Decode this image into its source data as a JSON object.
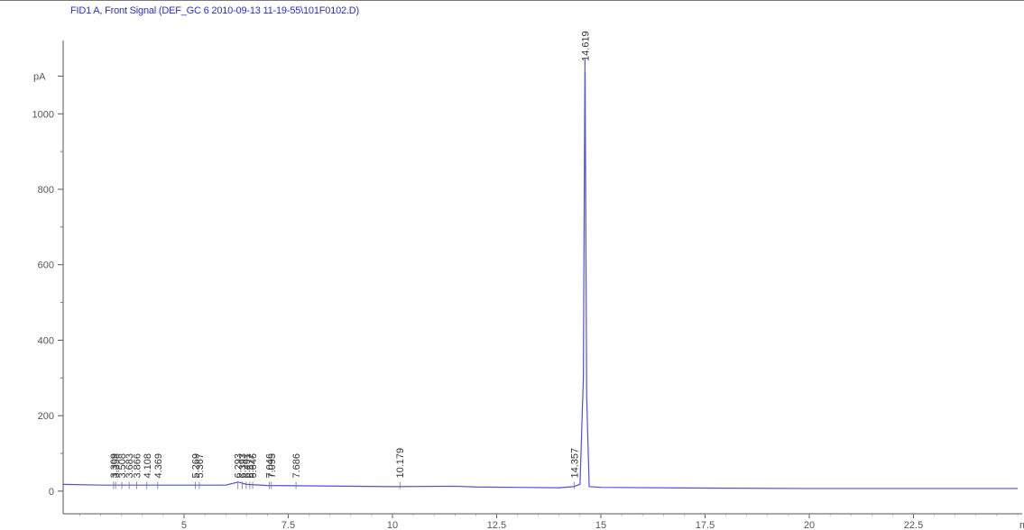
{
  "chart_data": {
    "type": "line",
    "title": "FID1 A, Front Signal (DEF_GC 6 2010-09-13 11-19-55\\101F0102.D)",
    "ylabel": "pA",
    "xlabel": "m",
    "xlim": [
      2.1,
      25.0
    ],
    "ylim": [
      -60,
      1230
    ],
    "x_ticks": [
      5,
      7.5,
      10,
      12.5,
      15,
      17.5,
      20,
      22.5
    ],
    "x_tick_labels": [
      "5",
      "7.5",
      "10",
      "12.5",
      "15",
      "17.5",
      "20",
      "22.5"
    ],
    "y_ticks": [
      0,
      200,
      400,
      600,
      800,
      1000
    ],
    "y_tick_labels": [
      "0",
      "200",
      "400",
      "600",
      "800",
      "1000"
    ],
    "grid": false,
    "series": [
      {
        "x": [
          2.1,
          3.0,
          4.0,
          5.0,
          6.0,
          6.3,
          6.5,
          7.0,
          8.0,
          10.0,
          11.5,
          12.0,
          13.0,
          14.0,
          14.35,
          14.5,
          14.58,
          14.619,
          14.66,
          14.72,
          15.0,
          17.5,
          20.0,
          22.5,
          25.0
        ],
        "y": [
          18,
          16,
          16,
          16,
          16,
          24,
          18,
          15,
          14,
          12,
          13,
          11,
          10,
          9,
          12,
          18,
          300,
          1145,
          250,
          12,
          10,
          8,
          7,
          7,
          7
        ]
      }
    ],
    "peak_labels": [
      "3.309",
      "3.358",
      "3.508",
      "3.683",
      "3.866",
      "4.108",
      "4.369",
      "5.269",
      "5.367",
      "6.293",
      "6.393",
      "6.491",
      "6.577",
      "6.646",
      "7.046",
      "7.095",
      "7.686",
      "10.179",
      "14.357",
      "14.619"
    ],
    "peak_label_values": [
      3.309,
      3.358,
      3.508,
      3.683,
      3.866,
      4.108,
      4.369,
      5.269,
      5.367,
      6.293,
      6.393,
      6.491,
      6.577,
      6.646,
      7.046,
      7.095,
      7.686,
      10.179,
      14.357,
      14.619
    ]
  }
}
